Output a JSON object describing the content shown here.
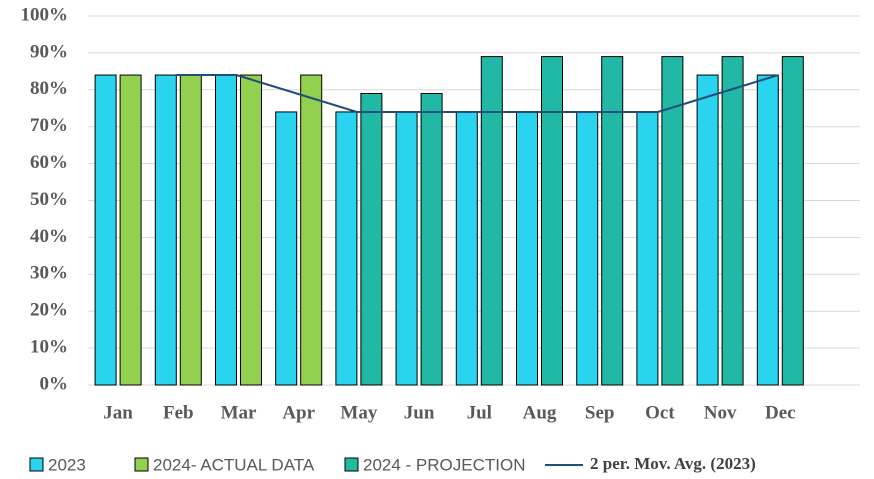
{
  "chart_data": {
    "type": "bar",
    "categories": [
      "Jan",
      "Feb",
      "Mar",
      "Apr",
      "May",
      "Jun",
      "Jul",
      "Aug",
      "Sep",
      "Oct",
      "Nov",
      "Dec"
    ],
    "series": [
      {
        "name": "2023",
        "color": "#2ad3ee",
        "values": [
          84,
          84,
          84,
          74,
          74,
          74,
          74,
          74,
          74,
          74,
          84,
          84
        ]
      },
      {
        "name": "2024- ACTUAL DATA",
        "color": "#92d050",
        "values": [
          84,
          84,
          84,
          84,
          null,
          null,
          null,
          null,
          null,
          null,
          null,
          null
        ]
      },
      {
        "name": "2024 - PROJECTION",
        "color": "#22b8a6",
        "values": [
          null,
          null,
          null,
          null,
          79,
          79,
          89,
          89,
          89,
          89,
          89,
          89
        ]
      },
      {
        "name": "2 per. Mov. Avg. (2023)",
        "color": "#1f4e79",
        "type": "line",
        "values": [
          null,
          84,
          84,
          79,
          74,
          74,
          74,
          74,
          74,
          74,
          79,
          84
        ]
      }
    ],
    "ylim": [
      0,
      100
    ],
    "yticks": [
      {
        "value": 0,
        "label": "0%"
      },
      {
        "value": 10,
        "label": "10%"
      },
      {
        "value": 20,
        "label": "20%"
      },
      {
        "value": 30,
        "label": "30%"
      },
      {
        "value": 40,
        "label": "40%"
      },
      {
        "value": 50,
        "label": "50%"
      },
      {
        "value": 60,
        "label": "60%"
      },
      {
        "value": 70,
        "label": "70%"
      },
      {
        "value": 80,
        "label": "80%"
      },
      {
        "value": 90,
        "label": "90%"
      },
      {
        "value": 100,
        "label": "100%"
      }
    ],
    "grid": true,
    "legend": "bottom"
  }
}
